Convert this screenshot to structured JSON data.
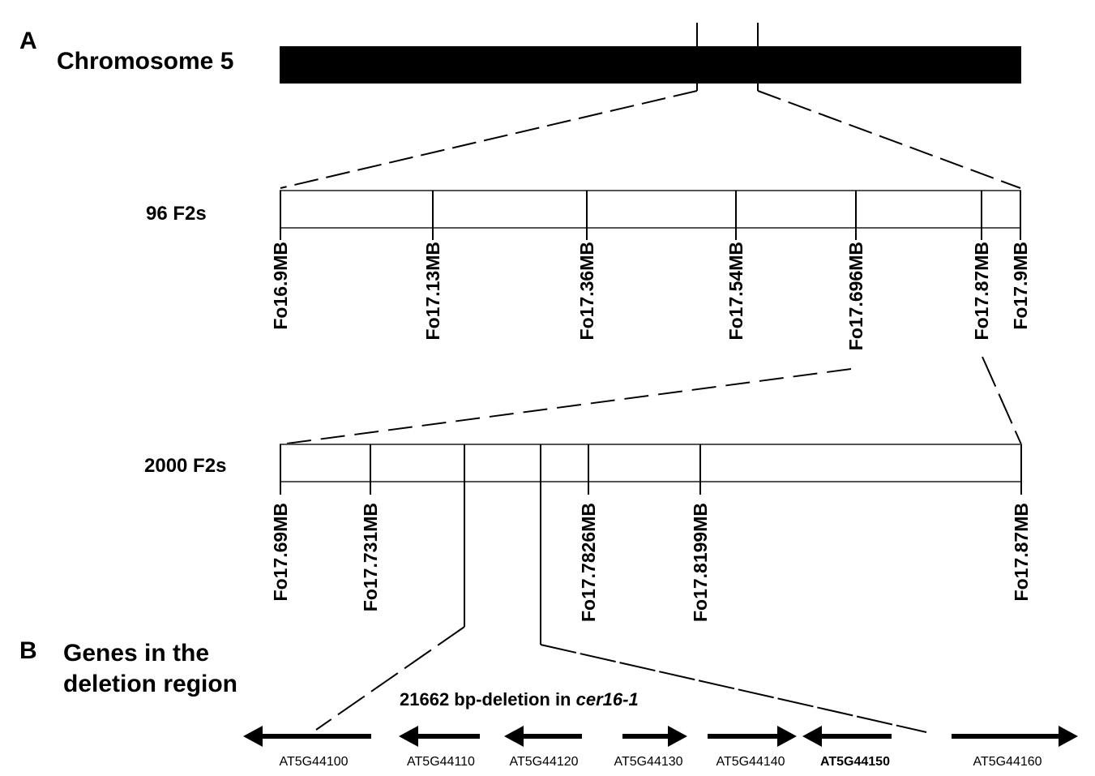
{
  "panel_a": {
    "letter": "A",
    "chromosome_label": "Chromosome 5",
    "coarse": {
      "label": "96 F2s",
      "markers": [
        "Fo16.9MB",
        "Fo17.13MB",
        "Fo17.36MB",
        "Fo17.54MB",
        "Fo17.696MB",
        "Fo17.87MB",
        "Fo17.9MB"
      ]
    },
    "fine": {
      "label": "2000 F2s",
      "markers": [
        "Fo17.69MB",
        "Fo17.731MB",
        "Fo17.7826MB",
        "Fo17.8199MB",
        "Fo17.87MB"
      ]
    }
  },
  "panel_b": {
    "letter": "B",
    "title_line1": "Genes in the",
    "title_line2": "deletion region",
    "deletion_text": "21662 bp-deletion in ",
    "deletion_allele": "cer16-1",
    "genes": [
      {
        "id": "AT5G44100",
        "direction": "left",
        "bold": false
      },
      {
        "id": "AT5G44110",
        "direction": "left",
        "bold": false
      },
      {
        "id": "AT5G44120",
        "direction": "left",
        "bold": false
      },
      {
        "id": "AT5G44130",
        "direction": "right",
        "bold": false
      },
      {
        "id": "AT5G44140",
        "direction": "right",
        "bold": false
      },
      {
        "id": "AT5G44150",
        "direction": "left",
        "bold": true
      },
      {
        "id": "AT5G44160",
        "direction": "right",
        "bold": false
      }
    ]
  }
}
